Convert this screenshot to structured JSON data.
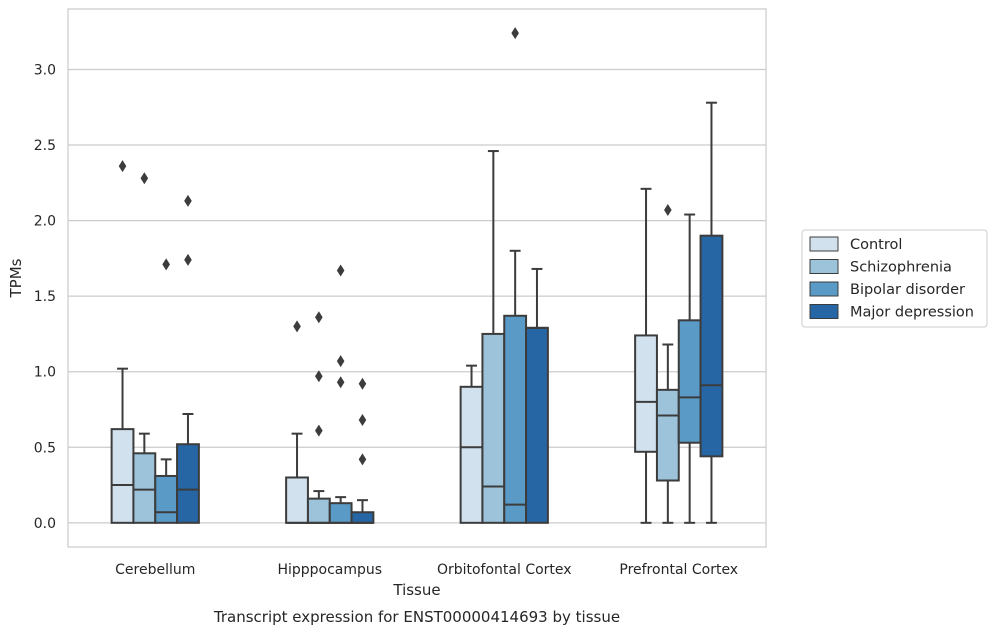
{
  "chart_data": {
    "type": "box",
    "xlabel": "Tissue",
    "ylabel": "TPMs",
    "caption": "Transcript expression for ENST00000414693 by tissue",
    "ylim": [
      -0.16,
      3.4
    ],
    "yticks": [
      0.0,
      0.5,
      1.0,
      1.5,
      2.0,
      2.5,
      3.0
    ],
    "ytick_labels": [
      "0.0",
      "0.5",
      "1.0",
      "1.5",
      "2.0",
      "2.5",
      "3.0"
    ],
    "grid": "horizontal",
    "legend_position": "right",
    "categories": [
      "Cerebellum",
      "Hipppocampus",
      "Orbitofontal Cortex",
      "Prefrontal Cortex"
    ],
    "series": [
      {
        "name": "Control",
        "color": "#d1e1ee",
        "boxes": [
          {
            "q1": 0.0,
            "median": 0.25,
            "q3": 0.62,
            "whisker_low": 0.0,
            "whisker_high": 1.02,
            "outliers": [
              2.36
            ]
          },
          {
            "q1": 0.0,
            "median": 0.0,
            "q3": 0.3,
            "whisker_low": 0.0,
            "whisker_high": 0.59,
            "outliers": [
              1.3
            ]
          },
          {
            "q1": 0.0,
            "median": 0.5,
            "q3": 0.9,
            "whisker_low": 0.0,
            "whisker_high": 1.04,
            "outliers": []
          },
          {
            "q1": 0.47,
            "median": 0.8,
            "q3": 1.24,
            "whisker_low": 0.0,
            "whisker_high": 2.21,
            "outliers": []
          }
        ]
      },
      {
        "name": "Schizophrenia",
        "color": "#9cc3da",
        "boxes": [
          {
            "q1": 0.0,
            "median": 0.22,
            "q3": 0.46,
            "whisker_low": 0.0,
            "whisker_high": 0.59,
            "outliers": [
              2.28
            ]
          },
          {
            "q1": 0.0,
            "median": 0.0,
            "q3": 0.16,
            "whisker_low": 0.0,
            "whisker_high": 0.21,
            "outliers": [
              0.61,
              0.97,
              1.36
            ]
          },
          {
            "q1": 0.0,
            "median": 0.24,
            "q3": 1.25,
            "whisker_low": 0.0,
            "whisker_high": 2.46,
            "outliers": []
          },
          {
            "q1": 0.28,
            "median": 0.71,
            "q3": 0.88,
            "whisker_low": 0.0,
            "whisker_high": 1.18,
            "outliers": [
              2.07
            ]
          }
        ]
      },
      {
        "name": "Bipolar disorder",
        "color": "#5a9ac6",
        "boxes": [
          {
            "q1": 0.0,
            "median": 0.07,
            "q3": 0.31,
            "whisker_low": 0.0,
            "whisker_high": 0.42,
            "outliers": [
              1.71
            ]
          },
          {
            "q1": 0.0,
            "median": 0.0,
            "q3": 0.13,
            "whisker_low": 0.0,
            "whisker_high": 0.17,
            "outliers": [
              0.93,
              1.07,
              1.67
            ]
          },
          {
            "q1": 0.0,
            "median": 0.12,
            "q3": 1.37,
            "whisker_low": 0.0,
            "whisker_high": 1.8,
            "outliers": [
              3.24
            ]
          },
          {
            "q1": 0.53,
            "median": 0.83,
            "q3": 1.34,
            "whisker_low": 0.0,
            "whisker_high": 2.04,
            "outliers": []
          }
        ]
      },
      {
        "name": "Major depression",
        "color": "#2766a4",
        "boxes": [
          {
            "q1": 0.0,
            "median": 0.22,
            "q3": 0.52,
            "whisker_low": 0.0,
            "whisker_high": 0.72,
            "outliers": [
              1.74,
              2.13
            ]
          },
          {
            "q1": 0.0,
            "median": 0.0,
            "q3": 0.07,
            "whisker_low": 0.0,
            "whisker_high": 0.15,
            "outliers": [
              0.42,
              0.68,
              0.92
            ]
          },
          {
            "q1": 0.0,
            "median": 1.29,
            "q3": 1.29,
            "whisker_low": 0.0,
            "whisker_high": 1.68,
            "outliers": []
          },
          {
            "q1": 0.44,
            "median": 0.91,
            "q3": 1.9,
            "whisker_low": 0.0,
            "whisker_high": 2.78,
            "outliers": []
          }
        ]
      }
    ]
  }
}
